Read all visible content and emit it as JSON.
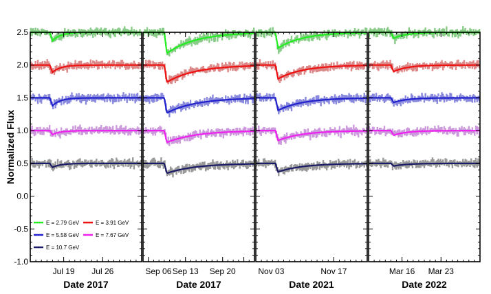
{
  "chart_data": {
    "type": "line",
    "ylabel": "Normalized Flux",
    "ylim": [
      -1.0,
      2.5
    ],
    "yticks": [
      -1.0,
      -0.5,
      0.0,
      0.5,
      1.0,
      1.5,
      2.0,
      2.5
    ],
    "ytick_labels": [
      "-1.0",
      "-0.5",
      "0.0",
      "0.5",
      "1.0",
      "1.5",
      "2.0",
      "2.5"
    ],
    "grid": false,
    "legend_position": "bottom-left",
    "series": [
      {
        "name": "E = 2.79 GeV",
        "offset": 1.5,
        "color": "#22ee22",
        "data_color": "#88cc88"
      },
      {
        "name": "E = 3.91 GeV",
        "offset": 1.0,
        "color": "#ee1111",
        "data_color": "#dd8888"
      },
      {
        "name": "E = 5.58 GeV",
        "offset": 0.5,
        "color": "#2222cc",
        "data_color": "#8888dd"
      },
      {
        "name": "E = 7.67 GeV",
        "offset": 0.0,
        "color": "#ee22ee",
        "data_color": "#cc99dd"
      },
      {
        "name": "E = 10.7 GeV",
        "offset": -0.5,
        "color": "#1a1a66",
        "data_color": "#999999"
      }
    ],
    "panels": [
      {
        "xlabel": "Date 2017",
        "xlim": [
          0,
          20
        ],
        "xticks": [
          6,
          13
        ],
        "xtick_labels": [
          "Jul 19",
          "Jul 26"
        ],
        "event_day": 3.5,
        "depths": [
          0.13,
          0.11,
          0.12,
          0.06,
          0.06
        ],
        "recovery_days": 1.5
      },
      {
        "xlabel": "Date 2017",
        "xlim": [
          0,
          21
        ],
        "xticks": [
          1,
          8,
          15,
          19
        ],
        "xtick_labels": [
          "Sep 06",
          "Sep 13",
          "Sep 20",
          ""
        ],
        "event_day": 4.0,
        "depths": [
          0.32,
          0.26,
          0.23,
          0.18,
          0.15
        ],
        "recovery_days": 5.5
      },
      {
        "xlabel": "Date 2021",
        "xlim": [
          0,
          20
        ],
        "xticks": [
          0,
          14
        ],
        "xtick_labels": [
          "Nov 03",
          "Nov 17"
        ],
        "event_day": 3.5,
        "depths": [
          0.24,
          0.21,
          0.19,
          0.15,
          0.13
        ],
        "recovery_days": 4.5
      },
      {
        "xlabel": "Date 2022",
        "xlim": [
          0,
          20
        ],
        "xticks": [
          6,
          13
        ],
        "xtick_labels": [
          "Mar 16",
          "Mar 23"
        ],
        "event_day": 4.0,
        "depths": [
          0.09,
          0.1,
          0.07,
          0.07,
          0.04
        ],
        "recovery_days": 2.5
      }
    ]
  }
}
